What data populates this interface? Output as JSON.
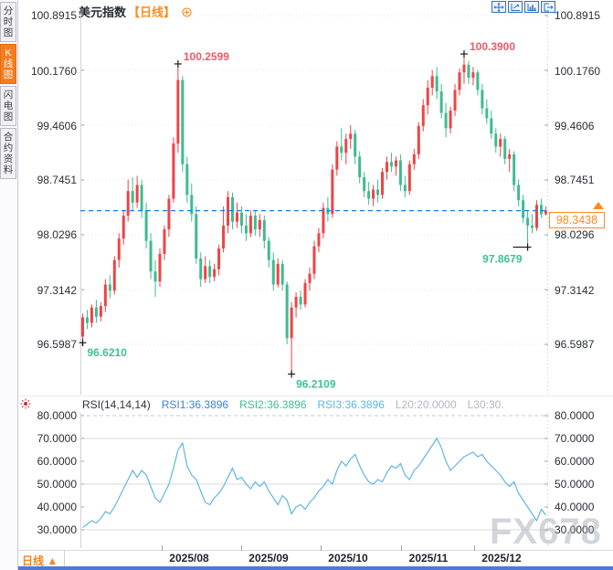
{
  "sidebar": {
    "tabs": [
      {
        "label": "分时图",
        "active": false
      },
      {
        "label": "K线图",
        "active": true
      },
      {
        "label": "闪电图",
        "active": false
      },
      {
        "label": "合约资料",
        "active": false
      }
    ]
  },
  "header": {
    "title": "美元指数",
    "period": "【日线】",
    "add_indicator_icon": "circle-plus-icon"
  },
  "toolbar": {
    "icons": [
      "pan-crosshair-icon",
      "zoom-axis-icon",
      "bar-axis-icon",
      "exit-chart-icon"
    ]
  },
  "price_axis": {
    "ticks": [
      "100.8915",
      "100.1760",
      "99.4606",
      "98.7451",
      "98.0296",
      "97.3142",
      "96.5987"
    ]
  },
  "rsi_axis": {
    "ticks": [
      "80.0000",
      "70.0000",
      "60.0000",
      "50.0000",
      "40.0000",
      "30.0000"
    ]
  },
  "price_line": {
    "value": "98.3438"
  },
  "rsi_header": {
    "items": [
      {
        "text": "RSI(14,14,14)",
        "color": "#2f333d"
      },
      {
        "text": "RSI1:36.3896",
        "color": "#3b82d8"
      },
      {
        "text": "RSI2:36.3896",
        "color": "#3cbd90"
      },
      {
        "text": "RSI3:36.3896",
        "color": "#57b9e8"
      },
      {
        "text": "L20:20.0000",
        "color": "#b4b6bf"
      },
      {
        "text": "L30:30.",
        "color": "#b4b6bf"
      }
    ]
  },
  "footer": {
    "period": "日线 ▲",
    "dates": [
      "2025/08",
      "2025/09",
      "2025/10",
      "2025/11",
      "2025/12"
    ]
  },
  "watermark": "FX678",
  "colors": {
    "up": "#ee4446",
    "down": "#3fbb90",
    "price_line": "#1b7ee0",
    "badge": "#ff8a1e",
    "rsi_line": "#5fb6e3",
    "high_label": "#f2566a",
    "low_label": "#3ec294"
  },
  "chart_data": [
    {
      "type": "candlestick",
      "title": "美元指数 日线 (US Dollar Index, Daily)",
      "y_ticks": [
        100.8915,
        100.176,
        99.4606,
        98.7451,
        98.0296,
        97.3142,
        96.5987
      ],
      "x_ticks": [
        "2025/08",
        "2025/09",
        "2025/10",
        "2025/11",
        "2025/12"
      ],
      "ylim": [
        95.97,
        100.93
      ],
      "last_price": 98.3438,
      "annotations": [
        {
          "candle": 21,
          "price": 100.26,
          "text": "100.2599",
          "type": "high",
          "pos": "tr"
        },
        {
          "candle": 84,
          "price": 100.39,
          "text": "100.3900",
          "type": "high",
          "pos": "tr"
        },
        {
          "candle": 0,
          "price": 96.621,
          "text": "96.6210",
          "type": "low",
          "pos": "br"
        },
        {
          "candle": 46,
          "price": 96.2109,
          "text": "96.2109",
          "type": "low",
          "pos": "br"
        },
        {
          "candle": 98,
          "price": 97.8679,
          "text": "97.8679",
          "type": "low",
          "pos": "bl"
        }
      ],
      "candles": [
        [
          96.7,
          97.0,
          96.62,
          96.95
        ],
        [
          96.95,
          97.05,
          96.8,
          96.88
        ],
        [
          96.88,
          97.12,
          96.82,
          97.08
        ],
        [
          97.08,
          97.18,
          96.88,
          96.96
        ],
        [
          96.96,
          97.15,
          96.9,
          97.1
        ],
        [
          97.1,
          97.45,
          97.02,
          97.38
        ],
        [
          97.38,
          97.5,
          97.2,
          97.3
        ],
        [
          97.3,
          97.75,
          97.25,
          97.7
        ],
        [
          97.7,
          98.05,
          97.6,
          97.98
        ],
        [
          97.98,
          98.35,
          97.9,
          98.28
        ],
        [
          98.28,
          98.75,
          98.2,
          98.6
        ],
        [
          98.6,
          98.78,
          98.35,
          98.45
        ],
        [
          98.45,
          98.8,
          98.38,
          98.68
        ],
        [
          98.68,
          98.75,
          98.25,
          98.35
        ],
        [
          98.35,
          98.45,
          97.85,
          97.95
        ],
        [
          97.95,
          98.05,
          97.45,
          97.55
        ],
        [
          97.55,
          97.7,
          97.22,
          97.42
        ],
        [
          97.42,
          97.85,
          97.35,
          97.78
        ],
        [
          97.78,
          98.15,
          97.7,
          98.1
        ],
        [
          98.1,
          98.55,
          98.0,
          98.5
        ],
        [
          98.5,
          99.3,
          98.45,
          99.22
        ],
        [
          99.22,
          100.26,
          99.1,
          100.05
        ],
        [
          100.05,
          100.1,
          98.85,
          98.95
        ],
        [
          98.95,
          99.05,
          98.45,
          98.55
        ],
        [
          98.55,
          98.7,
          98.2,
          98.3
        ],
        [
          98.3,
          98.4,
          97.65,
          97.72
        ],
        [
          97.72,
          97.8,
          97.35,
          97.45
        ],
        [
          97.45,
          97.75,
          97.4,
          97.62
        ],
        [
          97.62,
          97.7,
          97.4,
          97.48
        ],
        [
          97.48,
          97.65,
          97.42,
          97.58
        ],
        [
          97.58,
          97.9,
          97.5,
          97.85
        ],
        [
          97.85,
          98.4,
          97.8,
          98.15
        ],
        [
          98.15,
          98.6,
          98.05,
          98.52
        ],
        [
          98.52,
          98.58,
          98.1,
          98.2
        ],
        [
          98.2,
          98.45,
          98.12,
          98.32
        ],
        [
          98.32,
          98.4,
          98.05,
          98.15
        ],
        [
          98.15,
          98.3,
          97.95,
          98.05
        ],
        [
          98.05,
          98.35,
          98.0,
          98.28
        ],
        [
          98.28,
          98.35,
          98.02,
          98.1
        ],
        [
          98.1,
          98.3,
          98.0,
          98.22
        ],
        [
          98.22,
          98.28,
          97.85,
          97.95
        ],
        [
          97.95,
          98.0,
          97.6,
          97.7
        ],
        [
          97.7,
          97.8,
          97.3,
          97.38
        ],
        [
          97.38,
          97.72,
          97.34,
          97.65
        ],
        [
          97.65,
          97.7,
          97.3,
          97.38
        ],
        [
          97.38,
          97.42,
          96.6,
          96.68
        ],
        [
          96.68,
          97.15,
          96.21,
          97.08
        ],
        [
          97.08,
          97.28,
          96.95,
          97.22
        ],
        [
          97.22,
          97.3,
          97.05,
          97.12
        ],
        [
          97.12,
          97.45,
          97.08,
          97.4
        ],
        [
          97.4,
          97.6,
          97.3,
          97.52
        ],
        [
          97.52,
          97.95,
          97.45,
          97.88
        ],
        [
          97.88,
          98.12,
          97.8,
          98.05
        ],
        [
          98.05,
          98.45,
          97.98,
          98.38
        ],
        [
          98.38,
          98.52,
          98.2,
          98.3
        ],
        [
          98.3,
          98.95,
          98.25,
          98.88
        ],
        [
          98.88,
          99.25,
          98.8,
          99.18
        ],
        [
          99.18,
          99.42,
          99.0,
          99.1
        ],
        [
          99.1,
          99.35,
          98.95,
          99.28
        ],
        [
          99.28,
          99.46,
          99.15,
          99.35
        ],
        [
          99.35,
          99.4,
          98.95,
          99.05
        ],
        [
          99.05,
          99.12,
          98.7,
          98.78
        ],
        [
          98.78,
          98.85,
          98.52,
          98.6
        ],
        [
          98.6,
          98.72,
          98.42,
          98.5
        ],
        [
          98.5,
          98.68,
          98.4,
          98.62
        ],
        [
          98.62,
          98.75,
          98.45,
          98.55
        ],
        [
          98.55,
          98.9,
          98.5,
          98.85
        ],
        [
          98.85,
          99.05,
          98.75,
          98.98
        ],
        [
          98.98,
          99.1,
          98.85,
          98.92
        ],
        [
          98.92,
          99.05,
          98.8,
          99.0
        ],
        [
          99.0,
          99.08,
          98.6,
          98.68
        ],
        [
          98.68,
          98.8,
          98.52,
          98.6
        ],
        [
          98.6,
          99.0,
          98.55,
          98.95
        ],
        [
          98.95,
          99.15,
          98.88,
          99.08
        ],
        [
          99.08,
          99.5,
          99.02,
          99.45
        ],
        [
          99.45,
          99.8,
          99.38,
          99.72
        ],
        [
          99.72,
          100.05,
          99.6,
          99.95
        ],
        [
          99.95,
          100.18,
          99.85,
          100.1
        ],
        [
          100.1,
          100.22,
          99.8,
          99.9
        ],
        [
          99.9,
          100.0,
          99.55,
          99.62
        ],
        [
          99.62,
          99.75,
          99.3,
          99.42
        ],
        [
          99.42,
          99.7,
          99.35,
          99.65
        ],
        [
          99.65,
          100.0,
          99.58,
          99.92
        ],
        [
          99.92,
          100.2,
          99.85,
          100.15
        ],
        [
          100.15,
          100.39,
          100.0,
          100.25
        ],
        [
          100.25,
          100.3,
          100.0,
          100.08
        ],
        [
          100.08,
          100.22,
          99.98,
          100.15
        ],
        [
          100.15,
          100.18,
          99.85,
          99.92
        ],
        [
          99.92,
          100.0,
          99.6,
          99.68
        ],
        [
          99.68,
          99.8,
          99.48,
          99.55
        ],
        [
          99.55,
          99.65,
          99.28,
          99.35
        ],
        [
          99.35,
          99.42,
          99.1,
          99.18
        ],
        [
          99.18,
          99.35,
          99.05,
          99.28
        ],
        [
          99.28,
          99.32,
          98.95,
          99.02
        ],
        [
          99.02,
          99.15,
          98.85,
          99.08
        ],
        [
          99.08,
          99.12,
          98.6,
          98.68
        ],
        [
          98.68,
          98.75,
          98.4,
          98.48
        ],
        [
          98.48,
          98.55,
          98.18,
          98.25
        ],
        [
          98.25,
          98.35,
          97.87,
          98.15
        ],
        [
          98.15,
          98.3,
          98.05,
          98.12
        ],
        [
          98.12,
          98.48,
          98.08,
          98.42
        ],
        [
          98.42,
          98.5,
          98.25,
          98.3
        ],
        [
          98.3,
          98.4,
          98.28,
          98.3438
        ]
      ]
    },
    {
      "type": "line",
      "name": "RSI(14,14,14)",
      "legend": [
        "RSI1:36.3896",
        "RSI2:36.3896",
        "RSI3:36.3896",
        "L20:20.0000",
        "L30:30."
      ],
      "current": 36.3896,
      "y_ticks": [
        80,
        70,
        60,
        50,
        40,
        30
      ],
      "ylim": [
        22,
        81
      ],
      "levels": {
        "dashed": [
          80
        ],
        "solid": [
          70,
          50,
          30
        ]
      },
      "values": [
        31,
        32.5,
        34,
        33,
        35,
        38,
        37,
        40,
        44,
        48,
        52,
        56,
        53,
        56,
        54,
        49,
        44,
        42,
        46,
        50,
        57,
        65,
        68,
        58,
        54,
        52,
        47,
        42,
        41,
        44,
        46,
        49,
        53,
        57,
        52,
        53,
        50,
        48,
        51,
        49,
        51,
        47,
        44,
        41,
        45,
        43,
        37,
        40,
        41,
        39,
        42,
        44,
        47,
        49,
        52,
        50,
        56,
        60,
        58,
        61,
        63,
        58,
        54,
        51,
        50,
        52,
        51,
        55,
        58,
        57,
        59,
        54,
        52,
        56,
        58,
        61,
        64,
        67,
        70,
        66,
        60,
        56,
        58,
        60,
        62,
        63,
        64,
        62,
        63,
        60,
        58,
        56,
        54,
        51,
        49,
        51,
        46,
        43,
        40,
        37,
        34,
        39,
        36.39
      ]
    }
  ]
}
